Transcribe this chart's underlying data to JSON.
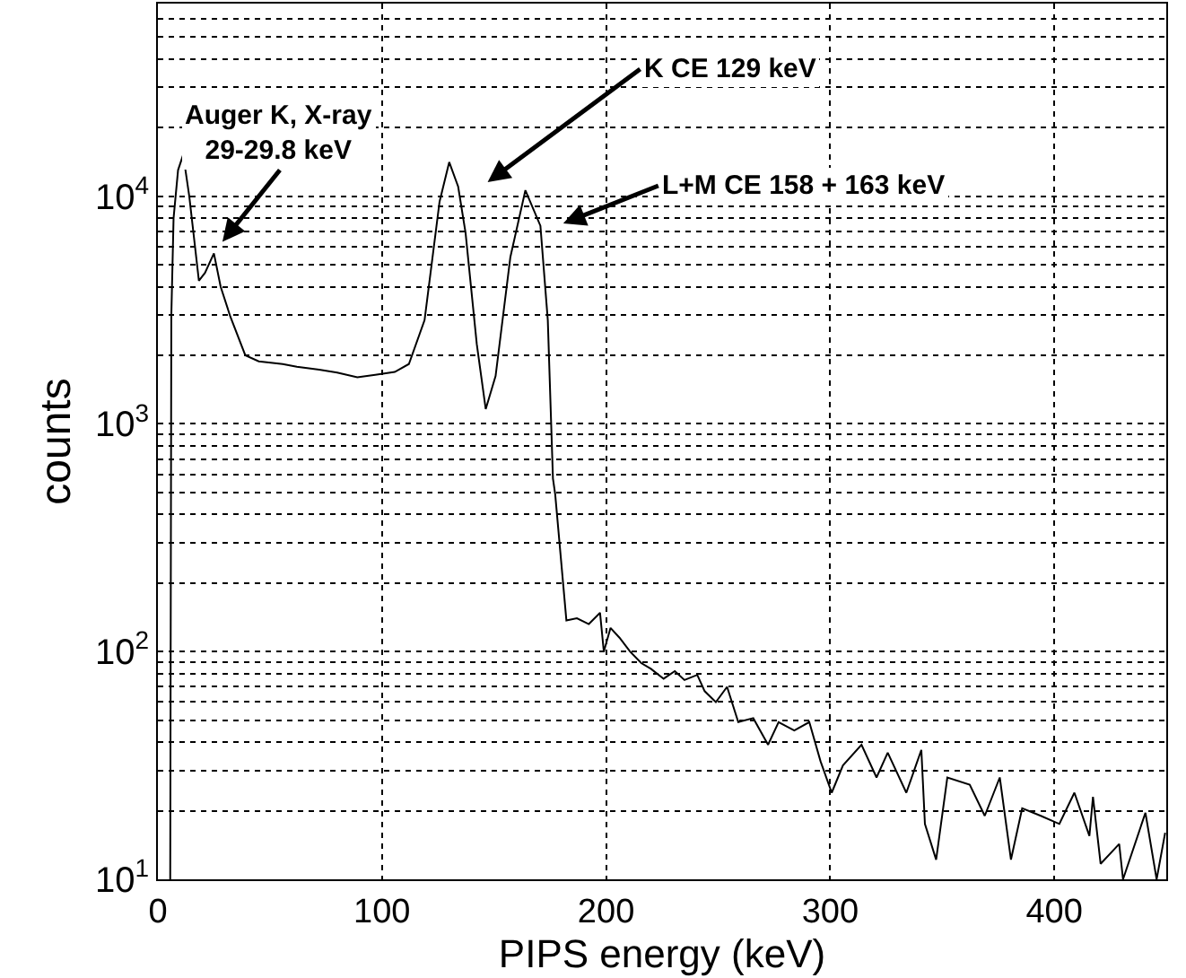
{
  "chart_data": {
    "type": "line",
    "xlabel": "PIPS energy (keV)",
    "ylabel": "counts",
    "x": [
      5.5,
      6,
      7,
      9,
      11.3,
      14,
      18.3,
      21,
      25,
      28,
      32.3,
      39,
      45,
      55.7,
      62,
      72,
      80,
      89,
      97,
      105.7,
      112,
      119,
      125.7,
      130,
      134,
      137.3,
      142.3,
      146.3,
      150.7,
      157.3,
      164,
      170.7,
      174,
      176.3,
      177.3,
      182.3,
      187,
      192.3,
      197.3,
      199,
      202,
      206,
      210.7,
      215.7,
      220,
      225.7,
      230.7,
      235,
      240.7,
      244,
      249,
      254,
      259,
      265.7,
      272.3,
      277,
      284,
      290.7,
      295.7,
      300.7,
      305.7,
      314,
      320.7,
      325.7,
      334,
      340.7,
      342.3,
      347.3,
      352.3,
      362.3,
      369,
      375.7,
      380.7,
      385.7,
      394,
      402.3,
      409,
      415.7,
      417.3,
      420.7,
      429,
      430.7,
      440.7,
      445.7,
      449.5
    ],
    "series": [
      {
        "color": "#000000",
        "values": [
          10,
          3000,
          8000,
          13000,
          15200,
          10000,
          4250,
          4600,
          5600,
          4000,
          2960,
          2000,
          1880,
          1830,
          1780,
          1730,
          1680,
          1600,
          1640,
          1690,
          1830,
          2850,
          9450,
          14100,
          11000,
          6900,
          2240,
          1160,
          1620,
          5400,
          10600,
          7400,
          2850,
          575,
          490,
          137,
          140,
          132,
          148,
          100,
          127,
          115,
          100,
          89,
          84,
          76,
          82,
          75,
          79,
          67,
          60,
          70,
          49,
          51,
          39,
          49,
          45,
          49,
          33,
          24,
          31.6,
          39,
          28,
          36,
          24,
          37,
          17.5,
          12.2,
          28,
          26,
          19,
          28,
          12.2,
          20.5,
          19,
          17.5,
          24,
          15.5,
          23,
          11.7,
          14.3,
          10,
          19.6,
          10,
          16
        ]
      }
    ],
    "xlim": [
      0,
      450
    ],
    "xticks": [
      0,
      100,
      200,
      300,
      400
    ],
    "ylim": [
      10,
      70000
    ],
    "yticks": [
      {
        "value": 10,
        "label": "10$^{1}$"
      },
      {
        "value": 100,
        "label": "10$^{2}$"
      },
      {
        "value": 1000,
        "label": "10$^{3}$"
      },
      {
        "value": 10000,
        "label": "10$^{4}$"
      }
    ],
    "log": "y",
    "grid": true,
    "marker": "none",
    "line_style": "solid",
    "annotations": [
      "Auger K, X-ray\n29-29.8 keV",
      "K CE 129 keV",
      "L+M CE 158 + 163 keV"
    ]
  }
}
